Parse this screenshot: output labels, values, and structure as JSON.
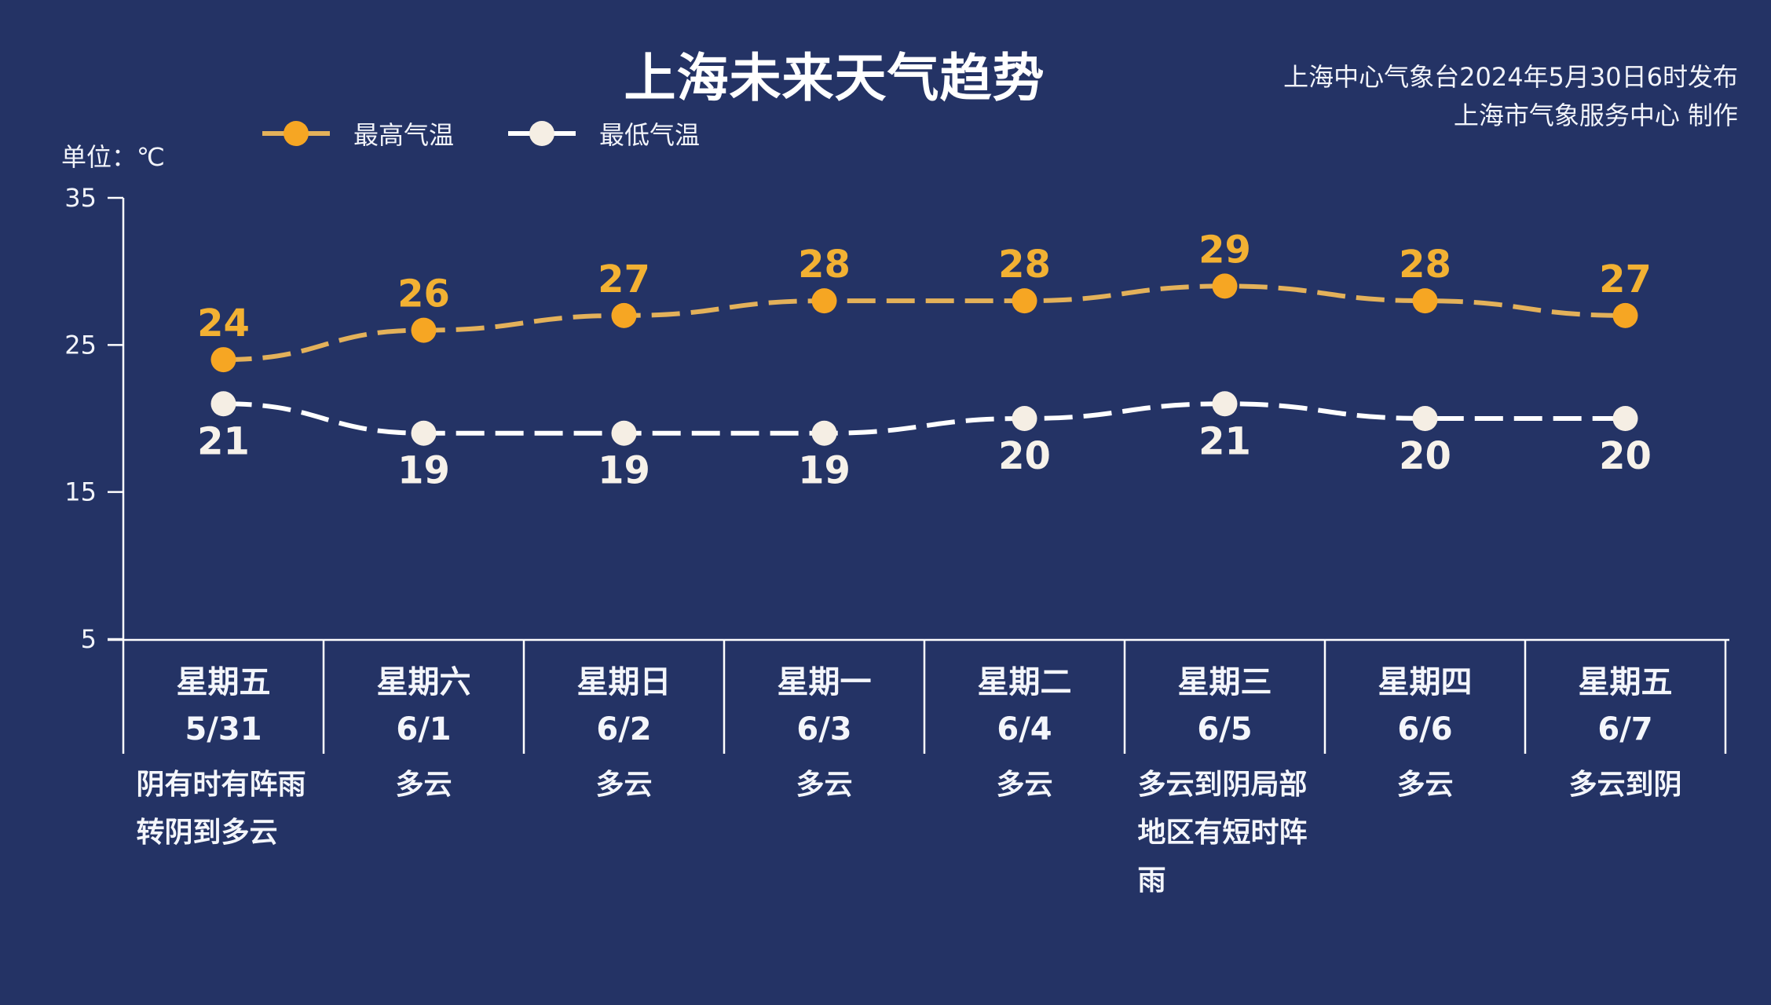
{
  "header": {
    "title": "上海未来天气趋势",
    "source_line1": "上海中心气象台2024年5月30日6时发布",
    "source_line2": "上海市气象服务中心 制作",
    "unit_label": "单位：℃"
  },
  "legend": [
    {
      "label": "最高气温",
      "color": "#F6A623",
      "line_color": "#E3B15A",
      "icon": "line-with-circle-marker"
    },
    {
      "label": "最低气温",
      "color": "#F5EEE4",
      "line_color": "#FFFFFF",
      "icon": "line-with-circle-marker"
    }
  ],
  "colors": {
    "background": "#243365",
    "axis": "#FFFFFF",
    "high_label": "#F2B133",
    "low_label": "#F7F2EA"
  },
  "forecast": [
    {
      "day": "星期五",
      "date": "5/31",
      "weather": "阴有时有阵雨转阴到多云",
      "high": 24,
      "low": 21
    },
    {
      "day": "星期六",
      "date": "6/1",
      "weather": "多云",
      "high": 26,
      "low": 19
    },
    {
      "day": "星期日",
      "date": "6/2",
      "weather": "多云",
      "high": 27,
      "low": 19
    },
    {
      "day": "星期一",
      "date": "6/3",
      "weather": "多云",
      "high": 28,
      "low": 19
    },
    {
      "day": "星期二",
      "date": "6/4",
      "weather": "多云",
      "high": 28,
      "low": 20
    },
    {
      "day": "星期三",
      "date": "6/5",
      "weather": "多云到阴局部地区有短时阵雨",
      "high": 29,
      "low": 21
    },
    {
      "day": "星期四",
      "date": "6/6",
      "weather": "多云",
      "high": 28,
      "low": 20
    },
    {
      "day": "星期五",
      "date": "6/7",
      "weather": "多云到阴",
      "high": 27,
      "low": 20
    }
  ],
  "chart_data": {
    "type": "line",
    "title": "上海未来天气趋势",
    "subtitle": "上海中心气象台2024年5月30日6时发布 / 上海市气象服务中心 制作",
    "xlabel": "",
    "ylabel": "单位：℃",
    "categories": [
      "星期五 5/31",
      "星期六 6/1",
      "星期日 6/2",
      "星期一 6/3",
      "星期二 6/4",
      "星期三 6/5",
      "星期四 6/6",
      "星期五 6/7"
    ],
    "series": [
      {
        "name": "最高气温",
        "values": [
          24,
          26,
          27,
          28,
          28,
          29,
          28,
          27
        ],
        "color": "#F6A623",
        "style": "dashed",
        "marker": "circle",
        "data_labels": "above"
      },
      {
        "name": "最低气温",
        "values": [
          21,
          19,
          19,
          19,
          20,
          21,
          20,
          20
        ],
        "color": "#F5EEE4",
        "style": "dashed",
        "marker": "circle",
        "data_labels": "below"
      }
    ],
    "ylim": [
      5,
      35
    ],
    "yticks": [
      5,
      15,
      25,
      35
    ],
    "grid": false,
    "legend_position": "top-left",
    "annotations": [
      "阴有时有阵雨转阴到多云",
      "多云",
      "多云",
      "多云",
      "多云",
      "多云到阴局部地区有短时阵雨",
      "多云",
      "多云到阴"
    ]
  }
}
